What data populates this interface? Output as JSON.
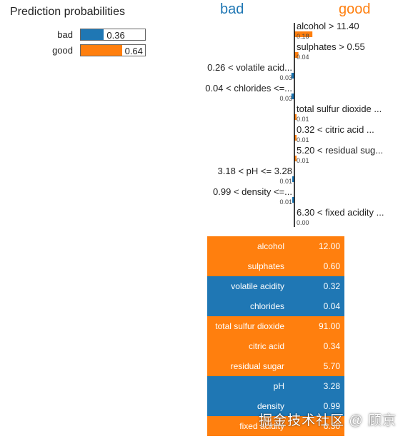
{
  "colors": {
    "bad": "#1f77b4",
    "good": "#ff7f0e"
  },
  "prediction": {
    "title": "Prediction probabilities",
    "items": [
      {
        "label": "bad",
        "value": 0.36,
        "display": "0.36",
        "class": "bad"
      },
      {
        "label": "good",
        "value": 0.64,
        "display": "0.64",
        "class": "good"
      }
    ]
  },
  "chart_data": {
    "type": "bar",
    "orientation": "horizontal",
    "class_labels": {
      "negative": "bad",
      "positive": "good"
    },
    "categories": [
      "alcohol > 11.40",
      "sulphates > 0.55",
      "0.26 < volatile acid...",
      "0.04 < chlorides <=...",
      "total sulfur dioxide ...",
      "0.32 < citric acid ...",
      "5.20 < residual sug...",
      "3.18 < pH <= 3.28",
      "0.99 < density <=...",
      "6.30 < fixed acidity ..."
    ],
    "values": [
      0.18,
      0.04,
      0.03,
      0.03,
      0.01,
      0.01,
      0.01,
      0.01,
      0.01,
      0.0
    ],
    "value_labels": [
      "0.18",
      "0.04",
      "0.03",
      "0.03",
      "0.01",
      "0.01",
      "0.01",
      "0.01",
      "0.01",
      "0.00"
    ],
    "sides": [
      "good",
      "good",
      "bad",
      "bad",
      "good",
      "good",
      "good",
      "bad",
      "bad",
      "good"
    ]
  },
  "feature_table": [
    {
      "name": "alcohol",
      "value": "12.00",
      "class": "good"
    },
    {
      "name": "sulphates",
      "value": "0.60",
      "class": "good"
    },
    {
      "name": "volatile acidity",
      "value": "0.32",
      "class": "bad"
    },
    {
      "name": "chlorides",
      "value": "0.04",
      "class": "bad"
    },
    {
      "name": "total sulfur dioxide",
      "value": "91.00",
      "class": "good"
    },
    {
      "name": "citric acid",
      "value": "0.34",
      "class": "good"
    },
    {
      "name": "residual sugar",
      "value": "5.70",
      "class": "good"
    },
    {
      "name": "pH",
      "value": "3.28",
      "class": "bad"
    },
    {
      "name": "density",
      "value": "0.99",
      "class": "bad"
    },
    {
      "name": "fixed acidity",
      "value": "6.30",
      "class": "good"
    }
  ],
  "watermark": "掘金技术社区 @ 顾京"
}
